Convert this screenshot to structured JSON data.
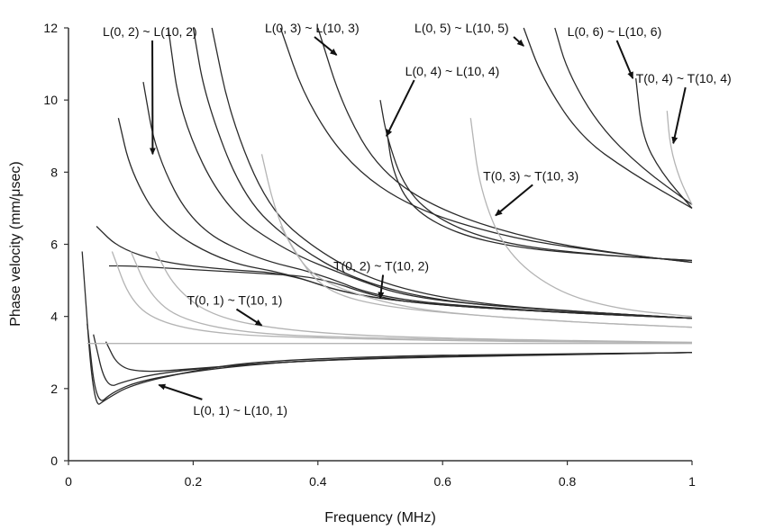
{
  "chart_data": {
    "type": "line",
    "title": "",
    "xlabel": "Frequency (MHz)",
    "ylabel": "Phase velocity (mm/μsec)",
    "xlim": [
      0,
      1
    ],
    "ylim": [
      0,
      12
    ],
    "x_ticks": [
      "0",
      "0.2",
      "0.4",
      "0.6",
      "0.8",
      "1"
    ],
    "y_ticks": [
      "0",
      "2",
      "4",
      "6",
      "8",
      "10",
      "12"
    ],
    "grid": false,
    "legend": "none",
    "colors": {
      "dark": "#2b2b2b",
      "light": "#b4b4b4",
      "axis": "#333333"
    },
    "series": [
      {
        "family": "L(n,1)",
        "color": "dark",
        "curves": [
          {
            "x": [
              0.022,
              0.04,
              0.06,
              0.1,
              0.2,
              0.3,
              0.5,
              0.7,
              1.0
            ],
            "y": [
              5.8,
              1.45,
              1.7,
              2.1,
              2.5,
              2.75,
              2.9,
              2.95,
              3.0
            ]
          },
          {
            "x": [
              0.03,
              0.045,
              0.07,
              0.12,
              0.25,
              0.4,
              0.6,
              1.0
            ],
            "y": [
              3.8,
              1.5,
              1.9,
              2.25,
              2.6,
              2.8,
              2.9,
              3.0
            ]
          },
          {
            "x": [
              0.04,
              0.06,
              0.09,
              0.15,
              0.3,
              0.5,
              1.0
            ],
            "y": [
              3.5,
              2.0,
              2.2,
              2.45,
              2.7,
              2.85,
              3.0
            ]
          },
          {
            "x": [
              0.06,
              0.08,
              0.12,
              0.2,
              0.35,
              0.6,
              1.0
            ],
            "y": [
              3.3,
              2.6,
              2.45,
              2.55,
              2.75,
              2.9,
              3.0
            ]
          }
        ]
      },
      {
        "family": "L(n,2)",
        "color": "dark",
        "curves": [
          {
            "x": [
              0.065,
              0.1,
              0.2,
              0.3,
              0.4,
              0.5,
              0.6,
              0.8,
              1.0
            ],
            "y": [
              5.4,
              5.4,
              5.3,
              5.2,
              5.1,
              4.5,
              4.3,
              4.1,
              3.95
            ]
          },
          {
            "x": [
              0.045,
              0.08,
              0.15,
              0.25,
              0.35,
              0.45,
              0.6,
              0.8,
              1.0
            ],
            "y": [
              6.5,
              5.9,
              5.5,
              5.3,
              5.2,
              4.6,
              4.3,
              4.1,
              3.95
            ]
          },
          {
            "x": [
              0.08,
              0.1,
              0.15,
              0.25,
              0.35,
              0.45,
              0.6,
              0.8,
              1.0
            ],
            "y": [
              9.5,
              8.0,
              6.5,
              5.5,
              5.2,
              4.6,
              4.3,
              4.1,
              3.95
            ]
          },
          {
            "x": [
              0.12,
              0.14,
              0.2,
              0.3,
              0.4,
              0.5,
              0.7,
              1.0
            ],
            "y": [
              10.5,
              8.5,
              6.5,
              5.6,
              5.2,
              4.5,
              4.2,
              3.95
            ]
          },
          {
            "x": [
              0.16,
              0.18,
              0.25,
              0.35,
              0.45,
              0.55,
              0.75,
              1.0
            ],
            "y": [
              12.0,
              9.5,
              7.0,
              5.8,
              5.1,
              4.5,
              4.2,
              3.95
            ]
          },
          {
            "x": [
              0.2,
              0.22,
              0.28,
              0.36,
              0.46,
              0.6,
              0.8,
              1.0
            ],
            "y": [
              12.0,
              10.0,
              7.3,
              6.0,
              5.0,
              4.4,
              4.15,
              3.95
            ]
          },
          {
            "x": [
              0.23,
              0.26,
              0.32,
              0.4,
              0.5,
              0.65,
              0.85,
              1.0
            ],
            "y": [
              12.0,
              9.5,
              7.0,
              5.8,
              4.9,
              4.35,
              4.1,
              3.95
            ]
          }
        ]
      },
      {
        "family": "T(n,1)",
        "color": "light",
        "curves": [
          {
            "x": [
              0.03,
              0.1,
              0.3,
              0.6,
              1.0
            ],
            "y": [
              3.25,
              3.25,
              3.25,
              3.25,
              3.25
            ]
          },
          {
            "x": [
              0.07,
              0.1,
              0.15,
              0.25,
              0.4,
              0.7,
              1.0
            ],
            "y": [
              5.8,
              4.4,
              3.8,
              3.5,
              3.4,
              3.3,
              3.28
            ]
          },
          {
            "x": [
              0.1,
              0.13,
              0.18,
              0.3,
              0.5,
              0.8,
              1.0
            ],
            "y": [
              5.8,
              4.6,
              3.9,
              3.5,
              3.4,
              3.3,
              3.28
            ]
          },
          {
            "x": [
              0.14,
              0.17,
              0.23,
              0.35,
              0.55,
              1.0
            ],
            "y": [
              5.8,
              4.8,
              4.0,
              3.6,
              3.4,
              3.28
            ]
          }
        ]
      },
      {
        "family": "T(n,2)",
        "color": "light",
        "curves": [
          {
            "x": [
              0.31,
              0.33,
              0.36,
              0.4,
              0.5,
              0.6,
              0.8,
              1.0
            ],
            "y": [
              8.5,
              7.0,
              5.8,
              5.0,
              4.4,
              4.1,
              3.85,
              3.7
            ]
          },
          {
            "x": [
              0.34,
              0.36,
              0.39,
              0.43,
              0.5,
              0.6,
              0.8,
              1.0
            ],
            "y": [
              6.5,
              5.9,
              5.1,
              4.6,
              4.3,
              4.1,
              3.85,
              3.7
            ]
          }
        ]
      },
      {
        "family": "L(n,3)",
        "color": "dark",
        "curves": [
          {
            "x": [
              0.34,
              0.38,
              0.45,
              0.55,
              0.7,
              0.85,
              1.0
            ],
            "y": [
              12.0,
              10.0,
              8.2,
              7.0,
              6.2,
              5.8,
              5.5
            ]
          },
          {
            "x": [
              0.4,
              0.44,
              0.5,
              0.6,
              0.75,
              0.9,
              1.0
            ],
            "y": [
              12.0,
              9.8,
              8.0,
              6.9,
              6.1,
              5.7,
              5.5
            ]
          }
        ]
      },
      {
        "family": "L(n,4)",
        "color": "dark",
        "curves": [
          {
            "x": [
              0.51,
              0.52,
              0.55,
              0.62,
              0.72,
              0.85,
              1.0
            ],
            "y": [
              9.2,
              8.0,
              7.0,
              6.3,
              5.9,
              5.7,
              5.55
            ]
          },
          {
            "x": [
              0.5,
              0.51,
              0.54,
              0.6,
              0.7,
              0.85,
              1.0
            ],
            "y": [
              10.0,
              9.0,
              7.5,
              6.6,
              6.0,
              5.7,
              5.55
            ]
          }
        ]
      },
      {
        "family": "T(n,3)",
        "color": "light",
        "curves": [
          {
            "x": [
              0.645,
              0.66,
              0.7,
              0.78,
              0.88,
              1.0
            ],
            "y": [
              9.5,
              7.5,
              5.8,
              4.7,
              4.2,
              4.0
            ]
          }
        ]
      },
      {
        "family": "L(n,5)",
        "color": "dark",
        "curves": [
          {
            "x": [
              0.73,
              0.76,
              0.82,
              0.9,
              1.0
            ],
            "y": [
              12.0,
              10.6,
              9.0,
              8.0,
              7.0
            ]
          },
          {
            "x": [
              0.78,
              0.8,
              0.85,
              0.92,
              1.0
            ],
            "y": [
              12.0,
              10.8,
              9.3,
              8.1,
              7.1
            ]
          }
        ]
      },
      {
        "family": "L(n,6)",
        "color": "dark",
        "curves": [
          {
            "x": [
              0.91,
              0.92,
              0.95,
              1.0
            ],
            "y": [
              10.6,
              9.0,
              8.0,
              7.0
            ]
          }
        ]
      },
      {
        "family": "T(n,4)",
        "color": "light",
        "curves": [
          {
            "x": [
              0.96,
              0.965,
              0.98,
              1.0
            ],
            "y": [
              9.7,
              8.7,
              7.8,
              7.1
            ]
          }
        ]
      }
    ],
    "annotations": [
      {
        "label": "L(0, 2) ~ L(10, 2)",
        "text_at": [
          0.055,
          11.9
        ],
        "arrow_to": [
          0.135,
          8.5
        ]
      },
      {
        "label": "L(0, 3) ~ L(10, 3)",
        "text_at": [
          0.315,
          12.0
        ],
        "arrow_to": [
          0.43,
          11.25
        ]
      },
      {
        "label": "L(0, 5) ~ L(10, 5)",
        "text_at": [
          0.555,
          12.0
        ],
        "arrow_to": [
          0.73,
          11.5
        ]
      },
      {
        "label": "L(0, 6) ~ L(10, 6)",
        "text_at": [
          0.8,
          11.9
        ],
        "arrow_to": [
          0.905,
          10.6
        ]
      },
      {
        "label": "L(0, 4) ~ L(10, 4)",
        "text_at": [
          0.54,
          10.8
        ],
        "arrow_to": [
          0.51,
          9.0
        ]
      },
      {
        "label": "T(0, 4) ~ T(10, 4)",
        "text_at": [
          0.91,
          10.6
        ],
        "arrow_to": [
          0.97,
          8.8
        ]
      },
      {
        "label": "T(0, 3) ~ T(10, 3)",
        "text_at": [
          0.665,
          7.9
        ],
        "arrow_to": [
          0.685,
          6.8
        ]
      },
      {
        "label": "T(0, 2) ~ T(10, 2)",
        "text_at": [
          0.425,
          5.4
        ],
        "arrow_to": [
          0.5,
          4.5
        ]
      },
      {
        "label": "T(0, 1) ~ T(10, 1)",
        "text_at": [
          0.19,
          4.45
        ],
        "arrow_to": [
          0.31,
          3.75
        ]
      },
      {
        "label": "L(0, 1) ~ L(10, 1)",
        "text_at": [
          0.2,
          1.4
        ],
        "arrow_to": [
          0.145,
          2.1
        ]
      }
    ]
  }
}
